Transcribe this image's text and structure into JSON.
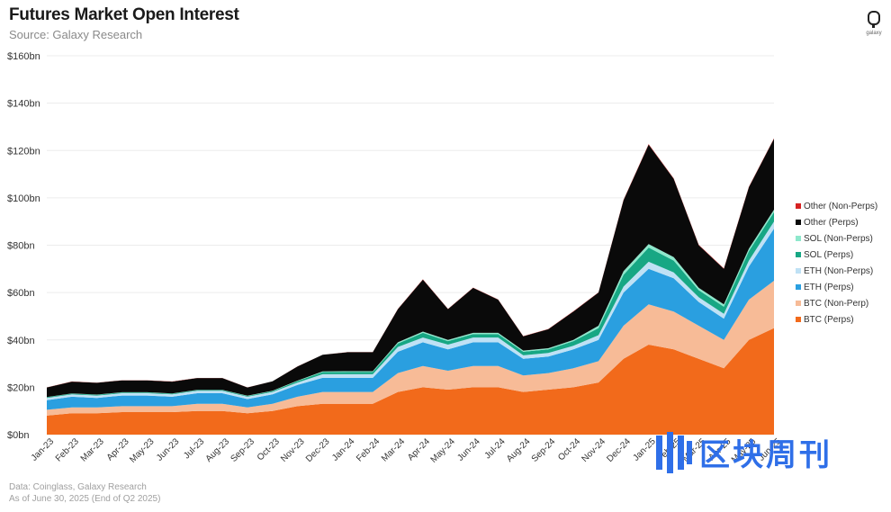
{
  "header": {
    "title": "Futures Market Open Interest",
    "subtitle": "Source: Galaxy Research",
    "logo_text": "galaxy"
  },
  "footer": {
    "data_source": "Data: Coinglass, Galaxy Research",
    "as_of": "As of June 30, 2025 (End of Q2 2025)"
  },
  "watermark": {
    "text": "区块周刊",
    "color": "#2f6fe8"
  },
  "chart_data": {
    "type": "area",
    "stacked": true,
    "title": "Futures Market Open Interest",
    "subtitle": "Source: Galaxy Research",
    "ylim": [
      0,
      160
    ],
    "y_ticks": [
      0,
      20,
      40,
      60,
      80,
      100,
      120,
      140,
      160
    ],
    "y_tick_labels": [
      "$0bn",
      "$20bn",
      "$40bn",
      "$60bn",
      "$80bn",
      "$100bn",
      "$120bn",
      "$140bn",
      "$160bn"
    ],
    "grid": true,
    "legend_position": "right",
    "x": [
      "Jan-23",
      "Feb-23",
      "Mar-23",
      "Apr-23",
      "May-23",
      "Jun-23",
      "Jul-23",
      "Aug-23",
      "Sep-23",
      "Oct-23",
      "Nov-23",
      "Dec-23",
      "Jan-24",
      "Feb-24",
      "Mar-24",
      "Apr-24",
      "May-24",
      "Jun-24",
      "Jul-24",
      "Aug-24",
      "Sep-24",
      "Oct-24",
      "Nov-24",
      "Dec-24",
      "Jan-25",
      "Feb-25",
      "Mar-25",
      "Apr-25",
      "May-25",
      "Jun-25"
    ],
    "series": [
      {
        "name": "BTC (Perps)",
        "color": "#f26a1b",
        "values": [
          8,
          9,
          9,
          9.5,
          9.5,
          9.5,
          10,
          10,
          9,
          10,
          12,
          13,
          13,
          13,
          18,
          20,
          19,
          20,
          20,
          18,
          19,
          20,
          22,
          32,
          38,
          36,
          32,
          28,
          40,
          45
        ]
      },
      {
        "name": "BTC (Non-Perp)",
        "color": "#f7bb97",
        "values": [
          2.5,
          2.5,
          2.5,
          2.5,
          2.5,
          2.5,
          3,
          3,
          2.5,
          3,
          4,
          5,
          5,
          5,
          8,
          9,
          8,
          9,
          9,
          7,
          7,
          8,
          9,
          14,
          17,
          16,
          14,
          12,
          17,
          20
        ]
      },
      {
        "name": "ETH (Perps)",
        "color": "#2a9fe0",
        "values": [
          4,
          4.5,
          4,
          4.5,
          4.5,
          4,
          4.5,
          4.5,
          3.5,
          4,
          5,
          6,
          6,
          6,
          9,
          10,
          9,
          10,
          10,
          7,
          7,
          8,
          9,
          14,
          15,
          14,
          10,
          9,
          14,
          22
        ]
      },
      {
        "name": "ETH (Non-Perps)",
        "color": "#bfe1f5",
        "values": [
          1,
          1,
          1,
          1,
          1,
          1,
          1,
          1,
          1,
          1,
          1,
          1.5,
          1.5,
          1.5,
          2,
          2,
          2,
          2,
          2,
          1.5,
          1.5,
          1.5,
          2,
          2.5,
          3,
          2.5,
          2,
          2,
          2.5,
          3
        ]
      },
      {
        "name": "SOL (Perps)",
        "color": "#17a784",
        "values": [
          0.3,
          0.3,
          0.3,
          0.3,
          0.3,
          0.3,
          0.3,
          0.3,
          0.3,
          0.4,
          0.6,
          0.9,
          1,
          1,
          1.5,
          2,
          1.5,
          1.5,
          1.5,
          1.5,
          1.5,
          2,
          3,
          5,
          6,
          5,
          3,
          3,
          4,
          4
        ]
      },
      {
        "name": "SOL (Non-Perps)",
        "color": "#8ee8cc",
        "values": [
          0.1,
          0.1,
          0.1,
          0.1,
          0.1,
          0.1,
          0.1,
          0.1,
          0.1,
          0.1,
          0.2,
          0.3,
          0.3,
          0.3,
          0.5,
          0.5,
          0.5,
          0.5,
          0.5,
          0.5,
          0.5,
          0.5,
          1,
          1.5,
          1.5,
          1.5,
          1,
          1,
          1,
          1
        ]
      },
      {
        "name": "Other (Perps)",
        "color": "#0a0a0a",
        "values": [
          4,
          5,
          5,
          5,
          5,
          5,
          5,
          5,
          3.5,
          4,
          6,
          7,
          8,
          8,
          14,
          22,
          13,
          19,
          14,
          6,
          8,
          12,
          14,
          30,
          42,
          33,
          18,
          15,
          26,
          30
        ]
      },
      {
        "name": "Other (Non-Perps)",
        "color": "#d62222",
        "values": [
          0.05,
          0.05,
          0.05,
          0.05,
          0.05,
          0.05,
          0.05,
          0.05,
          0.05,
          0.05,
          0.05,
          0.05,
          0.05,
          0.05,
          0.1,
          0.1,
          0.1,
          0.1,
          0.1,
          0.1,
          0.1,
          0.1,
          0.1,
          0.2,
          0.2,
          0.2,
          0.2,
          0.2,
          0.2,
          0.2
        ]
      }
    ]
  }
}
